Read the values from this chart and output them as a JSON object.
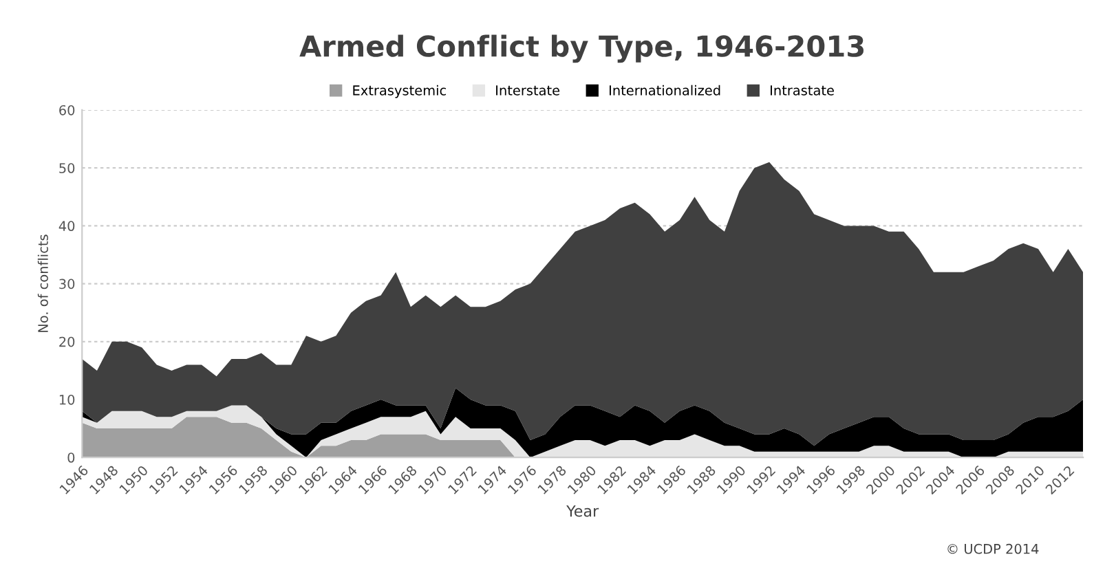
{
  "chart_data": {
    "type": "area",
    "stacked": true,
    "title": "Armed Conflict by Type, 1946-2013",
    "xlabel": "Year",
    "ylabel": "No. of conflicts",
    "x": [
      1946,
      1947,
      1948,
      1949,
      1950,
      1951,
      1952,
      1953,
      1954,
      1955,
      1956,
      1957,
      1958,
      1959,
      1960,
      1961,
      1962,
      1963,
      1964,
      1965,
      1966,
      1967,
      1968,
      1969,
      1970,
      1971,
      1972,
      1973,
      1974,
      1975,
      1976,
      1977,
      1978,
      1979,
      1980,
      1981,
      1982,
      1983,
      1984,
      1985,
      1986,
      1987,
      1988,
      1989,
      1990,
      1991,
      1992,
      1993,
      1994,
      1995,
      1996,
      1997,
      1998,
      1999,
      2000,
      2001,
      2002,
      2003,
      2004,
      2005,
      2006,
      2007,
      2008,
      2009,
      2010,
      2011,
      2012,
      2013
    ],
    "series": [
      {
        "name": "Extrasystemic",
        "color": "#a0a0a0",
        "values": [
          6,
          5,
          5,
          5,
          5,
          5,
          5,
          7,
          7,
          7,
          6,
          6,
          5,
          3,
          1,
          0,
          2,
          2,
          3,
          3,
          4,
          4,
          4,
          4,
          3,
          3,
          3,
          3,
          3,
          0,
          0,
          0,
          0,
          0,
          0,
          0,
          0,
          0,
          0,
          0,
          0,
          0,
          0,
          0,
          0,
          0,
          0,
          0,
          0,
          0,
          0,
          0,
          0,
          0,
          0,
          0,
          0,
          0,
          0,
          0,
          0,
          0,
          0,
          0,
          0,
          0,
          0,
          0
        ]
      },
      {
        "name": "Interstate",
        "color": "#e6e6e6",
        "values": [
          1,
          1,
          3,
          3,
          3,
          2,
          2,
          1,
          1,
          1,
          3,
          3,
          2,
          1,
          1,
          0,
          1,
          2,
          2,
          3,
          3,
          3,
          3,
          4,
          1,
          4,
          2,
          2,
          2,
          3,
          0,
          1,
          2,
          3,
          3,
          2,
          3,
          3,
          2,
          3,
          3,
          4,
          3,
          2,
          2,
          1,
          1,
          1,
          1,
          1,
          1,
          1,
          1,
          2,
          2,
          1,
          1,
          1,
          1,
          0,
          0,
          0,
          1,
          1,
          1,
          1,
          1,
          1
        ]
      },
      {
        "name": "Internationalized",
        "color": "#000000",
        "values": [
          1,
          0,
          0,
          0,
          0,
          0,
          0,
          0,
          0,
          0,
          0,
          0,
          0,
          1,
          2,
          4,
          3,
          2,
          3,
          3,
          3,
          2,
          2,
          1,
          1,
          5,
          5,
          4,
          4,
          5,
          3,
          3,
          5,
          6,
          6,
          6,
          4,
          6,
          6,
          3,
          5,
          5,
          5,
          4,
          3,
          3,
          3,
          4,
          3,
          1,
          3,
          4,
          5,
          5,
          5,
          4,
          3,
          3,
          3,
          3,
          3,
          3,
          3,
          5,
          6,
          6,
          7,
          9
        ]
      },
      {
        "name": "Intrastate",
        "color": "#404040",
        "values": [
          9,
          9,
          12,
          12,
          11,
          9,
          8,
          8,
          8,
          6,
          8,
          8,
          11,
          11,
          12,
          17,
          14,
          15,
          17,
          18,
          18,
          23,
          17,
          19,
          21,
          16,
          16,
          17,
          18,
          21,
          27,
          29,
          29,
          30,
          31,
          33,
          36,
          35,
          34,
          33,
          33,
          36,
          33,
          33,
          41,
          46,
          47,
          43,
          42,
          40,
          37,
          35,
          34,
          33,
          32,
          34,
          32,
          28,
          28,
          29,
          30,
          31,
          32,
          31,
          29,
          25,
          28,
          22
        ]
      }
    ],
    "xlim": [
      1946,
      2013
    ],
    "xticks": [
      1946,
      1948,
      1950,
      1952,
      1954,
      1956,
      1958,
      1960,
      1962,
      1964,
      1966,
      1968,
      1970,
      1972,
      1974,
      1976,
      1978,
      1980,
      1982,
      1984,
      1986,
      1988,
      1990,
      1992,
      1994,
      1996,
      1998,
      2000,
      2002,
      2004,
      2006,
      2008,
      2010,
      2012
    ],
    "ylim": [
      0,
      60
    ],
    "yticks": [
      0,
      10,
      20,
      30,
      40,
      50,
      60
    ],
    "grid": "y",
    "legend": "top",
    "annotations": [
      "© UCDP 2014"
    ]
  }
}
